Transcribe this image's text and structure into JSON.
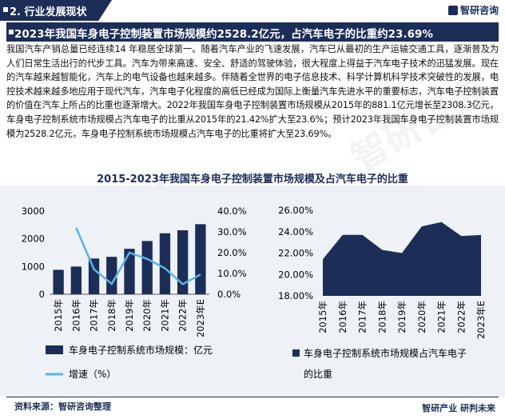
{
  "header": {
    "section_label": "2. 行业发展现状",
    "logo_text": "智研咨询"
  },
  "banner": {
    "title": "2023年我国车身电子控制装置市场规模约2528.2亿元，占汽车电子的比重约23.69%"
  },
  "paragraph": "我国汽车产销总量已经连续14 年稳居全球第一。随着汽车产业的飞速发展，汽车已从最初的生产运输交通工具，逐渐普及为人们日常生活出行的代步工具。汽车为带来高速、安全、舒适的驾驶体验，很大程度上得益于汽车电子技术的迅猛发展。现在的汽车越来越智能化，汽车上的电气设备也越来越多。伴随着全世界的电子信息技术、科学计算机科学技术突破性的发展，电控技术越来越多地应用于现代汽车，汽车电子化程度的高低已经成为国际上衡量汽车先进水平的重要标志，汽车电子控制装置的价值在汽车上所占的比重也逐渐增大。2022年我国车身电子控制装置市场规模从2015年的881.1亿元增长至2308.3亿元，车身电子控制系统市场规模占汽车电子的比重从2015年的21.42%扩大至23.6%；预计2023年我国车身电子控制装置市场规模为2528.2亿元，车身电子控制系统市场规模占汽车电子的比重将扩大至23.69%。",
  "chart_title": "2015-2023年我国车身电子控制装置市场规模及占汽车电子的比重",
  "footer": {
    "source": "资料来源：智研咨询整理",
    "slogan": "智研产业  研判未来"
  },
  "watermark": "智研咨询",
  "colors": {
    "navy": "#1c2e58",
    "line_blue": "#59b4e8",
    "panel_bg": "#eef2f7"
  },
  "chart_data": [
    {
      "type": "bar",
      "categories": [
        "2015年",
        "2016年",
        "2017年",
        "2018年",
        "2019年",
        "2020年",
        "2021年",
        "2022年",
        "2023年E"
      ],
      "series": [
        {
          "name": "车身电子控制系统市场规模：亿元",
          "type": "bar",
          "axis": "left",
          "values": [
            881.1,
            1000,
            1290,
            1350,
            1640,
            1920,
            2200,
            2308.3,
            2528.2
          ]
        },
        {
          "name": "增速（%）",
          "type": "line",
          "axis": "right",
          "values": [
            null,
            32,
            12,
            5,
            20,
            17,
            12.5,
            4.9,
            9.5
          ]
        }
      ],
      "y_left": {
        "ticks": [
          "0",
          "1000",
          "2000",
          "3000"
        ],
        "min": 0,
        "max": 3000
      },
      "y_right": {
        "ticks": [
          "0.0%",
          "10.0%",
          "20.0%",
          "30.0%",
          "40.0%"
        ],
        "min": 0,
        "max": 40
      },
      "legend": "bottom"
    },
    {
      "type": "area",
      "categories": [
        "2015年",
        "2016年",
        "2017年",
        "2018年",
        "2019年",
        "2020年",
        "2021年",
        "2022年",
        "2023年E"
      ],
      "series": [
        {
          "name": "车身电子控制系统市场规模占汽车电子的比重",
          "values": [
            21.42,
            23.7,
            23.7,
            22.3,
            22.0,
            24.5,
            24.9,
            23.6,
            23.69
          ]
        }
      ],
      "y": {
        "ticks": [
          "18.00%",
          "20.00%",
          "22.00%",
          "24.00%",
          "26.00%"
        ],
        "min": 18,
        "max": 26
      },
      "legend": "bottom"
    }
  ]
}
